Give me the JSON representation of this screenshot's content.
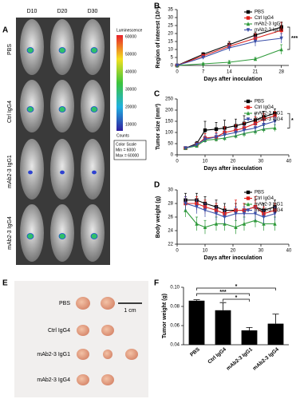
{
  "figure": {
    "panel_a": {
      "letter": "A",
      "days": [
        "D10",
        "D20",
        "D30"
      ],
      "groups": [
        "PBS",
        "Ctrl IgG4",
        "mAb2-3 IgG1",
        "mAb2-3 IgG4"
      ],
      "colorbar_title": "Luminescence",
      "colorbar_ticks": [
        "60000",
        "50000",
        "40000",
        "30000",
        "20000",
        "10000"
      ],
      "colorbar_unit": "Counts",
      "scale_title": "Color Scale",
      "scale_min": "Min = 6000",
      "scale_max": "Max = 60000"
    },
    "panel_e": {
      "letter": "E",
      "groups": [
        "PBS",
        "Ctrl IgG4",
        "mAb2-3 IgG1",
        "mAb2-3 IgG4"
      ],
      "scale_bar": "1 cm"
    }
  },
  "chart_data": [
    {
      "type": "line",
      "panel": "B",
      "y_label": "Region of interest (10⁶)",
      "x_label": "Days after inoculation",
      "x": [
        0,
        7,
        14,
        21,
        28
      ],
      "xlim": [
        0,
        30
      ],
      "xticks": [
        0,
        7,
        14,
        21,
        28
      ],
      "ylim": [
        0,
        35
      ],
      "yticks": [
        0,
        5,
        10,
        15,
        20,
        25,
        30,
        35
      ],
      "legend": "upper right",
      "annotation": "***",
      "series": [
        {
          "name": "PBS",
          "color": "#000000",
          "marker": "square",
          "values": [
            0,
            7,
            13,
            19,
            24
          ],
          "errors": [
            0,
            1,
            2,
            2,
            3
          ]
        },
        {
          "name": "Ctrl IgG4",
          "color": "#e0201b",
          "marker": "square",
          "values": [
            0,
            6,
            12,
            17,
            22
          ],
          "errors": [
            0,
            1,
            2,
            3,
            5
          ]
        },
        {
          "name": "mAb2-3 IgG1",
          "color": "#2e9a3a",
          "marker": "triangle",
          "values": [
            0,
            1,
            2,
            4,
            10
          ],
          "errors": [
            0,
            0.5,
            1,
            1,
            3
          ]
        },
        {
          "name": "mAb2-3 IgG4",
          "color": "#3b4fa8",
          "marker": "triangle-down",
          "values": [
            0,
            5,
            11,
            15,
            17
          ],
          "errors": [
            0,
            1,
            2,
            3,
            3
          ]
        }
      ]
    },
    {
      "type": "line",
      "panel": "C",
      "y_label": "Tumor size (mm³)",
      "x_label": "Days after inoculation",
      "x": [
        3,
        7,
        10,
        14,
        17,
        21,
        24,
        28,
        31,
        35
      ],
      "xlim": [
        0,
        40
      ],
      "xticks": [
        0,
        10,
        20,
        30,
        40
      ],
      "ylim": [
        0,
        250
      ],
      "yticks": [
        0,
        50,
        100,
        150,
        200,
        250
      ],
      "legend": "upper right",
      "annotation": "*",
      "series": [
        {
          "name": "PBS",
          "color": "#000000",
          "marker": "square",
          "values": [
            30,
            50,
            110,
            115,
            120,
            130,
            140,
            155,
            170,
            185
          ],
          "errors": [
            5,
            10,
            40,
            30,
            35,
            30,
            35,
            30,
            25,
            20
          ]
        },
        {
          "name": "Ctrl IgG4",
          "color": "#e0201b",
          "marker": "square",
          "values": [
            30,
            45,
            75,
            80,
            100,
            110,
            120,
            140,
            160,
            175
          ],
          "errors": [
            5,
            10,
            20,
            20,
            25,
            25,
            25,
            30,
            25,
            20
          ]
        },
        {
          "name": "mAb2-3 IgG1",
          "color": "#2e9a3a",
          "marker": "triangle",
          "values": [
            30,
            40,
            65,
            70,
            75,
            85,
            95,
            105,
            115,
            120
          ],
          "errors": [
            5,
            8,
            10,
            10,
            12,
            12,
            15,
            15,
            15,
            15
          ]
        },
        {
          "name": "mAb2-3 IgG4",
          "color": "#3b4fa8",
          "marker": "triangle-down",
          "values": [
            30,
            45,
            70,
            80,
            90,
            100,
            110,
            120,
            135,
            150
          ],
          "errors": [
            5,
            8,
            15,
            15,
            20,
            20,
            20,
            20,
            25,
            20
          ]
        }
      ]
    },
    {
      "type": "line",
      "panel": "D",
      "y_label": "Body weight (g)",
      "x_label": "Days after inoculation",
      "x": [
        3,
        7,
        10,
        14,
        17,
        21,
        24,
        28,
        31,
        35
      ],
      "xlim": [
        0,
        40
      ],
      "xticks": [
        0,
        10,
        20,
        30,
        40
      ],
      "ylim": [
        22,
        30
      ],
      "yticks": [
        22,
        24,
        26,
        28,
        30
      ],
      "legend": "upper right",
      "series": [
        {
          "name": "PBS",
          "color": "#000000",
          "marker": "square",
          "values": [
            28.5,
            28.5,
            28,
            27.5,
            27,
            27,
            27,
            27.5,
            27,
            27.5
          ],
          "errors": [
            1,
            1,
            1,
            1,
            1,
            1,
            1,
            1,
            1,
            1
          ]
        },
        {
          "name": "Ctrl IgG4",
          "color": "#e0201b",
          "marker": "square",
          "values": [
            28,
            28,
            27.5,
            27,
            26.5,
            27,
            27,
            27.5,
            26.5,
            27
          ],
          "errors": [
            1,
            1,
            1,
            1,
            1,
            1.5,
            1,
            1.5,
            1,
            1
          ]
        },
        {
          "name": "mAb2-3 IgG1",
          "color": "#2e9a3a",
          "marker": "triangle",
          "values": [
            27,
            25,
            24.5,
            25,
            25,
            24.5,
            25,
            25.5,
            25,
            25
          ],
          "errors": [
            1,
            1,
            1,
            1,
            1,
            1,
            1,
            1,
            1,
            1
          ]
        },
        {
          "name": "mAb2-3 IgG4",
          "color": "#3b4fa8",
          "marker": "triangle-down",
          "values": [
            28,
            27.5,
            27,
            26.5,
            26,
            26.5,
            26.5,
            26.5,
            26,
            26.5
          ],
          "errors": [
            1,
            1,
            1,
            1,
            1,
            1,
            1,
            1,
            1,
            1
          ]
        }
      ]
    },
    {
      "type": "bar",
      "panel": "F",
      "y_label": "Tumor weight (g)",
      "color": "#000000",
      "categories": [
        "PBS",
        "Ctrl IgG4",
        "mAb2-3 IgG1",
        "mAb2-3 IgG4"
      ],
      "values": [
        0.086,
        0.076,
        0.055,
        0.062
      ],
      "errors": [
        0.001,
        0.008,
        0.003,
        0.01
      ],
      "ylim": [
        0.04,
        0.1
      ],
      "yticks": [
        0.04,
        0.06,
        0.08,
        {
          "value": 0.1,
          "label": "0.10"
        }
      ],
      "significance": [
        {
          "text": "*",
          "from": 0,
          "to": 3
        },
        {
          "text": "***",
          "from": 0,
          "to": 2
        },
        {
          "text": "*",
          "from": 1,
          "to": 2
        }
      ]
    }
  ]
}
